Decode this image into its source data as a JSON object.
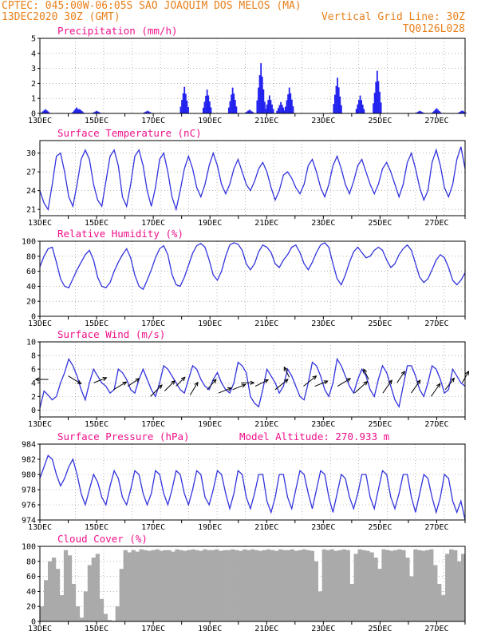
{
  "header": {
    "line1": "CPTEC:  045:00W-06:05S  SAO JOAQUIM DOS MELOS (MA)",
    "line2_left": "13DEC2020 30Z (GMT)",
    "line2_right": "Vertical Grid Line: 30Z",
    "line3_right": "TQ0126L028"
  },
  "colors": {
    "header": "#e8801c",
    "title": "#f0108a",
    "line": "#3333dd",
    "bar": "#2222ee",
    "cloud": "#aaaaaa"
  },
  "chart_data": [
    {
      "type": "bar",
      "title": "Precipitation (mm/h)",
      "ylim": [
        0,
        5
      ],
      "yticks": [
        0,
        1,
        2,
        3,
        4,
        5
      ],
      "xticks": [
        "13DEC",
        "15DEC",
        "17DEC",
        "19DEC",
        "21DEC",
        "23DEC",
        "25DEC",
        "27DEC"
      ],
      "peaks": [
        [
          13.2,
          0.3
        ],
        [
          14.3,
          0.4
        ],
        [
          14.4,
          0.3
        ],
        [
          15.0,
          0.2
        ],
        [
          16.8,
          0.2
        ],
        [
          18.1,
          1.8
        ],
        [
          18.9,
          1.6
        ],
        [
          19.8,
          1.9
        ],
        [
          20.4,
          0.3
        ],
        [
          20.8,
          3.5
        ],
        [
          21.1,
          1.2
        ],
        [
          21.5,
          0.8
        ],
        [
          21.8,
          2.1
        ],
        [
          23.5,
          2.6
        ],
        [
          24.3,
          1.2
        ],
        [
          24.9,
          2.9
        ],
        [
          26.4,
          0.2
        ],
        [
          27.0,
          0.4
        ],
        [
          27.9,
          0.2
        ]
      ]
    },
    {
      "type": "line",
      "title": "Surface Temperature (nC)",
      "ylim": [
        20,
        32
      ],
      "yticks": [
        21,
        24,
        27,
        30
      ],
      "xticks": [
        "13DEC",
        "15DEC",
        "17DEC",
        "19DEC",
        "21DEC",
        "23DEC",
        "25DEC",
        "27DEC"
      ],
      "values": [
        24,
        22,
        21,
        25,
        29.5,
        30,
        27,
        23,
        21.5,
        25,
        29,
        30.5,
        29,
        25,
        22.5,
        21.5,
        25.5,
        29.5,
        30.5,
        28,
        23,
        21.5,
        25,
        29.5,
        30.5,
        28,
        24,
        21.5,
        24.5,
        29,
        30,
        27,
        23,
        21,
        24,
        27.5,
        29.5,
        27.5,
        24.5,
        23,
        25,
        28,
        30,
        28,
        25,
        23.5,
        25,
        27.5,
        29,
        27,
        25,
        24,
        25.5,
        27.5,
        28.5,
        27,
        24.5,
        22.5,
        24,
        26.5,
        27,
        26,
        24.5,
        23.5,
        25,
        28,
        29,
        27,
        24.5,
        23,
        25,
        28,
        29.5,
        27.5,
        25,
        23.5,
        25.5,
        28,
        29,
        27,
        25,
        23.5,
        25,
        27.5,
        28.5,
        27,
        25,
        23,
        25,
        28.5,
        30,
        27.5,
        24.5,
        22.5,
        24,
        28.5,
        30.5,
        28,
        24.5,
        23,
        25,
        29,
        31,
        27.5
      ]
    },
    {
      "type": "line",
      "title": "Relative Humidity (%)",
      "ylim": [
        0,
        100
      ],
      "yticks": [
        0,
        20,
        40,
        60,
        80,
        100
      ],
      "xticks": [
        "13DEC",
        "15DEC",
        "17DEC",
        "19DEC",
        "21DEC",
        "23DEC",
        "25DEC",
        "27DEC"
      ],
      "values": [
        66,
        80,
        90,
        92,
        72,
        50,
        40,
        38,
        50,
        62,
        72,
        82,
        88,
        75,
        52,
        40,
        38,
        45,
        60,
        72,
        82,
        90,
        78,
        55,
        40,
        36,
        48,
        62,
        78,
        90,
        94,
        82,
        56,
        42,
        40,
        52,
        68,
        84,
        94,
        97,
        92,
        75,
        55,
        48,
        60,
        80,
        95,
        98,
        96,
        88,
        70,
        62,
        70,
        86,
        95,
        92,
        85,
        70,
        65,
        75,
        82,
        92,
        95,
        85,
        70,
        62,
        72,
        85,
        95,
        98,
        92,
        70,
        50,
        42,
        55,
        72,
        86,
        92,
        85,
        78,
        80,
        88,
        92,
        88,
        75,
        65,
        70,
        82,
        90,
        95,
        88,
        70,
        52,
        45,
        50,
        62,
        75,
        82,
        78,
        65,
        48,
        42,
        48,
        58
      ]
    },
    {
      "type": "line",
      "title": "Surface Wind (m/s)",
      "ylim": [
        -1,
        10
      ],
      "yticks": [
        0,
        2,
        4,
        6,
        8,
        10
      ],
      "xticks": [
        "13DEC",
        "15DEC",
        "17DEC",
        "19DEC",
        "21DEC",
        "23DEC",
        "25DEC",
        "27DEC"
      ],
      "values": [
        0.3,
        2.8,
        2.2,
        1.5,
        2.0,
        4.0,
        5.5,
        7.5,
        6.5,
        5.0,
        3.0,
        1.5,
        4.0,
        6.0,
        5.0,
        4.0,
        3.5,
        2.5,
        3.0,
        6.0,
        5.5,
        4.5,
        3.0,
        2.5,
        4.5,
        6.0,
        4.5,
        3.0,
        2.0,
        4.0,
        6.5,
        6.0,
        5.0,
        4.0,
        3.0,
        2.5,
        4.5,
        6.5,
        6.0,
        4.5,
        3.5,
        3.0,
        4.5,
        5.5,
        4.0,
        3.0,
        2.5,
        4.0,
        7.0,
        6.5,
        5.5,
        2.0,
        1.0,
        0.5,
        3.0,
        6.0,
        5.0,
        4.0,
        2.5,
        3.5,
        6.0,
        5.0,
        3.5,
        2.0,
        1.5,
        4.0,
        7.0,
        6.5,
        5.0,
        3.0,
        2.0,
        4.0,
        7.5,
        6.5,
        5.0,
        3.5,
        2.5,
        4.5,
        6.0,
        5.0,
        3.0,
        2.0,
        4.5,
        6.5,
        5.5,
        3.5,
        1.5,
        0.5,
        3.5,
        6.5,
        6.5,
        5.0,
        3.0,
        2.0,
        4.0,
        6.5,
        6.0,
        4.5,
        2.5,
        3.0,
        6.0,
        5.0,
        4.0,
        3.5
      ],
      "arrows": [
        [
          13.3,
          4.5,
          -1.0,
          0
        ],
        [
          14.0,
          5.0,
          1.0,
          -0.6
        ],
        [
          14.9,
          4.0,
          1.0,
          0.4
        ],
        [
          15.6,
          3.0,
          1.0,
          0.6
        ],
        [
          16.1,
          3.5,
          0.9,
          0.6
        ],
        [
          16.9,
          2.0,
          0.9,
          0.9
        ],
        [
          17.4,
          2.8,
          0.8,
          0.8
        ],
        [
          17.8,
          3.5,
          0.7,
          0.7
        ],
        [
          18.3,
          2.2,
          0.6,
          1.0
        ],
        [
          18.9,
          3.0,
          0.7,
          0.8
        ],
        [
          19.3,
          2.5,
          1.0,
          0.4
        ],
        [
          19.8,
          3.0,
          1.0,
          0.4
        ],
        [
          20.1,
          4.0,
          1.0,
          0
        ],
        [
          20.6,
          3.5,
          1.0,
          0.5
        ],
        [
          21.3,
          3.0,
          1.0,
          0.8
        ],
        [
          21.8,
          4.8,
          -0.4,
          0.8
        ],
        [
          22.3,
          3.5,
          1.0,
          0.8
        ],
        [
          22.7,
          3.5,
          1.0,
          0.4
        ],
        [
          23.5,
          3.5,
          1.0,
          0.6
        ],
        [
          24.1,
          2.5,
          1.0,
          0.9
        ],
        [
          24.6,
          4.5,
          -0.4,
          0.8
        ],
        [
          25.1,
          2.5,
          0.7,
          1.0
        ],
        [
          25.6,
          4.0,
          0.6,
          0.9
        ],
        [
          26.1,
          2.5,
          0.7,
          1.0
        ],
        [
          26.8,
          2.0,
          0.7,
          1.0
        ],
        [
          27.3,
          3.0,
          0.7,
          0.9
        ],
        [
          27.9,
          4.0,
          0.5,
          0.9
        ]
      ]
    },
    {
      "type": "line",
      "title": "Surface Pressure (hPa)",
      "subtitle": "Model Altitude: 270.933 m",
      "ylim": [
        974,
        984
      ],
      "yticks": [
        974,
        976,
        978,
        980,
        982,
        984
      ],
      "xticks": [
        "13DEC",
        "15DEC",
        "17DEC",
        "19DEC",
        "21DEC",
        "23DEC",
        "25DEC",
        "27DEC"
      ],
      "values": [
        979.5,
        981,
        982.5,
        982,
        980,
        978.5,
        979.5,
        981,
        982,
        980,
        977.5,
        976,
        978,
        980,
        979,
        977,
        976,
        978.5,
        980.5,
        979.5,
        977,
        976,
        978,
        980.5,
        980,
        977.5,
        976,
        977.5,
        980.5,
        980,
        977.5,
        976,
        978,
        980.5,
        980,
        977.5,
        976,
        978,
        980.5,
        980,
        977,
        976,
        978,
        980.5,
        980,
        977.5,
        975.5,
        977.5,
        980.5,
        980,
        977,
        975.5,
        977.5,
        980,
        980,
        976.5,
        975,
        977,
        980,
        980,
        977,
        975.5,
        978,
        980.5,
        980,
        977.5,
        975.5,
        978,
        980.5,
        980,
        977,
        975,
        977.5,
        980,
        979.5,
        977,
        975.5,
        977.5,
        980,
        980,
        977,
        975.5,
        978,
        980.5,
        980,
        977,
        975.5,
        977.5,
        980,
        980,
        977,
        975,
        977.5,
        980,
        979.5,
        977,
        975,
        977,
        980,
        979.5,
        976.5,
        975,
        976.5,
        974
      ]
    },
    {
      "type": "bar",
      "title": "Cloud Cover (%)",
      "ylim": [
        0,
        100
      ],
      "yticks": [
        0,
        20,
        40,
        60,
        80,
        100
      ],
      "xticks": [
        "13DEC",
        "15DEC",
        "17DEC",
        "19DEC",
        "21DEC",
        "23DEC",
        "25DEC",
        "27DEC"
      ],
      "values": [
        20,
        55,
        80,
        85,
        70,
        35,
        95,
        88,
        50,
        20,
        5,
        40,
        75,
        85,
        90,
        30,
        10,
        2,
        1,
        20,
        70,
        95,
        92,
        95,
        93,
        96,
        95,
        94,
        95,
        96,
        94,
        95,
        95,
        93,
        96,
        95,
        94,
        95,
        96,
        95,
        94,
        96,
        95,
        95,
        96,
        94,
        95,
        95,
        96,
        95,
        94,
        96,
        95,
        96,
        95,
        94,
        95,
        96,
        95,
        94,
        96,
        95,
        95,
        96,
        94,
        95,
        96,
        95,
        94,
        80,
        40,
        96,
        95,
        96,
        94,
        95,
        96,
        95,
        50,
        90,
        96,
        95,
        94,
        92,
        85,
        70,
        96,
        95,
        94,
        95,
        96,
        95,
        85,
        60,
        96,
        95,
        94,
        95,
        96,
        75,
        50,
        35,
        90,
        96,
        95,
        80,
        90
      ]
    }
  ]
}
